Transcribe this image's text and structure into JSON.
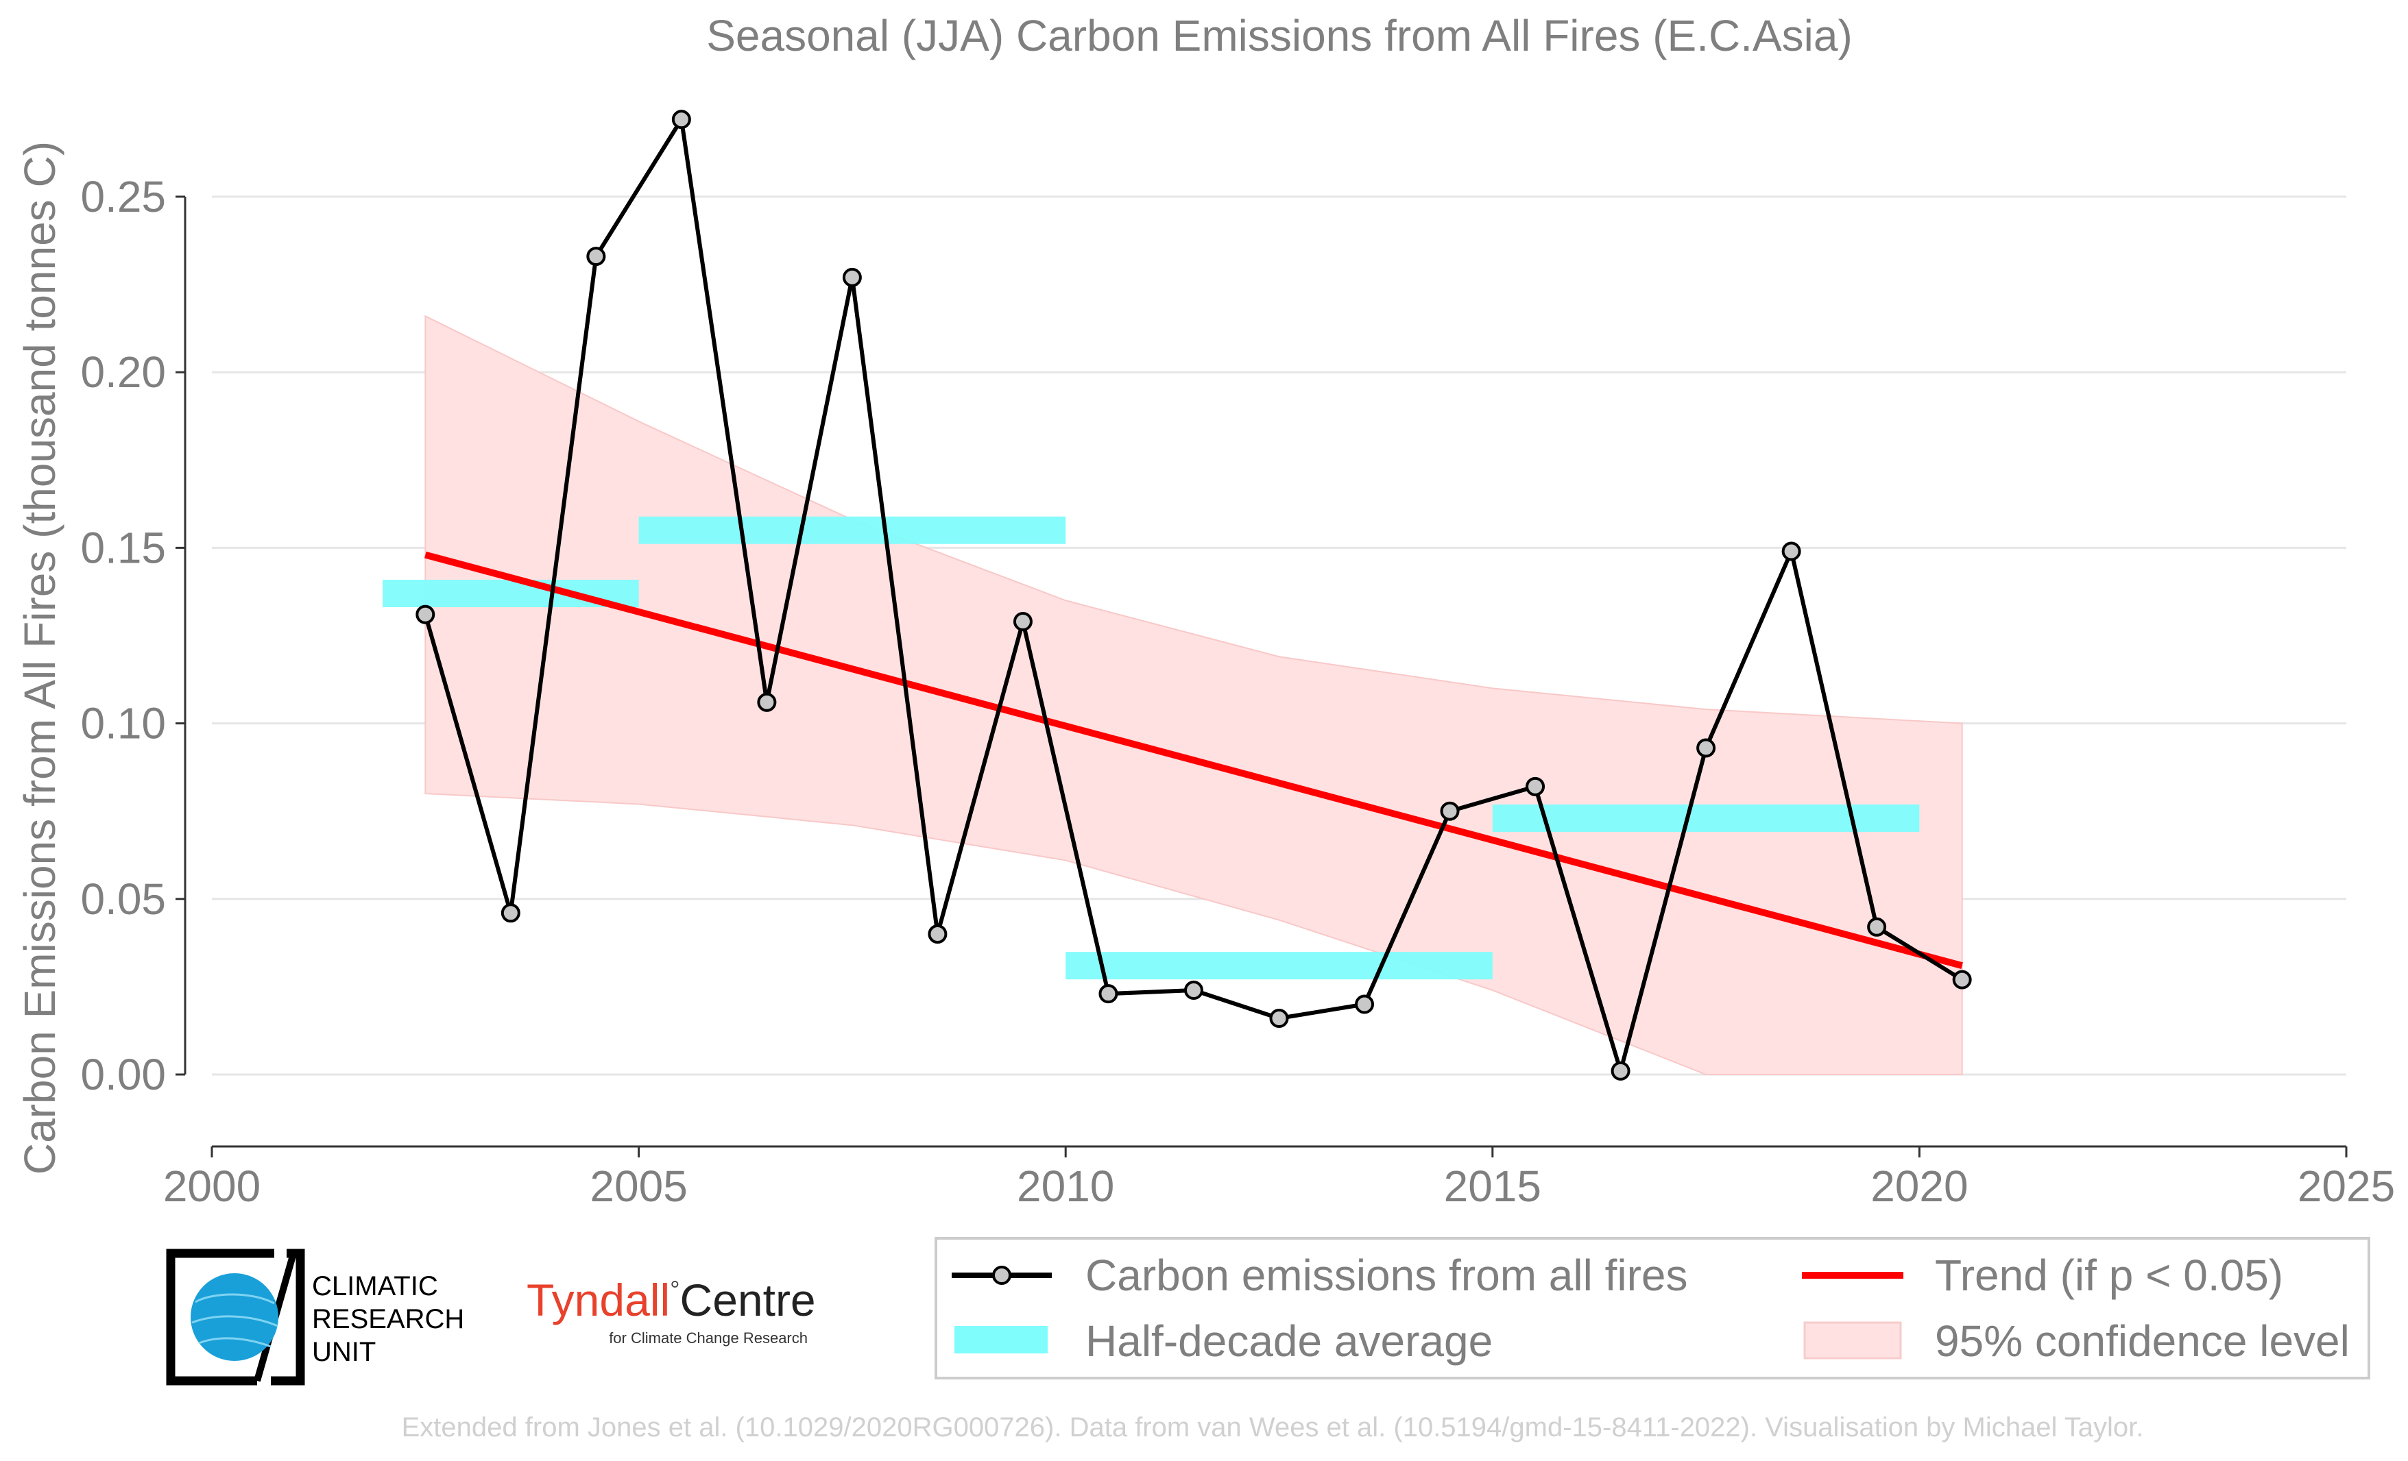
{
  "chart_data": {
    "type": "line",
    "title": "Seasonal (JJA) Carbon Emissions from All Fires (E.C.Asia)",
    "xlabel": "",
    "ylabel": "Carbon Emissions from All Fires (thousand tonnes C)",
    "xlim": [
      2000,
      2025
    ],
    "ylim": [
      -0.02,
      0.27
    ],
    "xticks": [
      2000,
      2005,
      2010,
      2015,
      2020,
      2025
    ],
    "xtick_labels": [
      "2000",
      "2005",
      "2010",
      "2015",
      "2020",
      "2025"
    ],
    "yticks": [
      0.0,
      0.05,
      0.1,
      0.15,
      0.2,
      0.25
    ],
    "ytick_labels": [
      "0.00",
      "0.05",
      "0.10",
      "0.15",
      "0.20",
      "0.25"
    ],
    "grid": true,
    "series": [
      {
        "name": "Carbon emissions from all fires",
        "color": "#000000",
        "x": [
          2002.5,
          2003.5,
          2004.5,
          2005.5,
          2006.5,
          2007.5,
          2008.5,
          2009.5,
          2010.5,
          2011.5,
          2012.5,
          2013.5,
          2014.5,
          2015.5,
          2016.5,
          2017.5,
          2018.5,
          2019.5,
          2020.5
        ],
        "y": [
          0.131,
          0.046,
          0.233,
          0.272,
          0.106,
          0.227,
          0.04,
          0.129,
          0.023,
          0.024,
          0.016,
          0.02,
          0.075,
          0.082,
          0.001,
          0.093,
          0.149,
          0.042,
          0.027
        ]
      },
      {
        "name": "Half-decade average",
        "color": "#7ffcfc",
        "segments": [
          {
            "x": [
              2002,
              2005
            ],
            "y": 0.137
          },
          {
            "x": [
              2005,
              2010
            ],
            "y": 0.155
          },
          {
            "x": [
              2010,
              2015
            ],
            "y": 0.031
          },
          {
            "x": [
              2015,
              2020
            ],
            "y": 0.073
          }
        ]
      },
      {
        "name": "Trend (if p < 0.05)",
        "color": "#ff0000",
        "x": [
          2002.5,
          2020.5
        ],
        "y": [
          0.148,
          0.031
        ]
      },
      {
        "name": "95% confidence level",
        "color": "#ffe1e1",
        "x": [
          2002.5,
          2005,
          2007.5,
          2010,
          2012.5,
          2015,
          2017.5,
          2020.5
        ],
        "upper": [
          0.216,
          0.186,
          0.158,
          0.135,
          0.119,
          0.11,
          0.104,
          0.1
        ],
        "lower": [
          0.08,
          0.077,
          0.071,
          0.061,
          0.044,
          0.024,
          0.0,
          0.0
        ]
      }
    ],
    "legend": {
      "placement": "bottom-right",
      "items": [
        "Carbon emissions from all fires",
        "Trend (if p < 0.05)",
        "Half-decade average",
        "95% confidence level"
      ]
    }
  },
  "logos": {
    "cru_line1": "CLIMATIC",
    "cru_line2": "RESEARCH",
    "cru_line3": "UNIT",
    "tyndall_name": "Tyndall",
    "tyndall_degree": "°",
    "tyndall_centre": "Centre",
    "tyndall_sub": "for Climate Change Research"
  },
  "credit": "Extended from Jones et al. (10.1029/2020RG000726). Data from van Wees et al. (10.5194/gmd-15-8411-2022). Visualisation by Michael Taylor."
}
